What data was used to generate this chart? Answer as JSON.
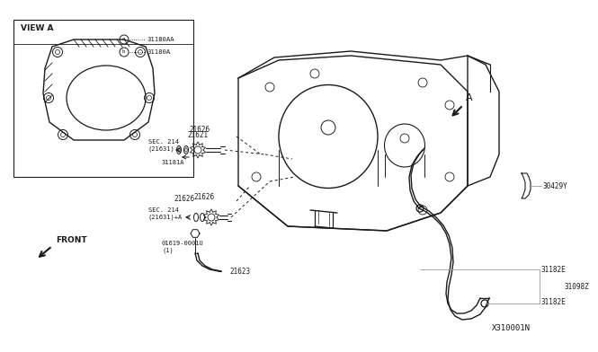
{
  "bg_color": "#ffffff",
  "line_color": "#1a1a1a",
  "gray_color": "#999999",
  "title": "X310001N",
  "fig_width": 6.4,
  "fig_height": 3.72,
  "labels": {
    "view_a": "VIEW A",
    "31180AA": "31180AA",
    "31180A": "31180A",
    "21626_top": "21626",
    "21621": "21621",
    "sec214_1": "SEC. 214\n(21631)",
    "31181A": "31181A",
    "21626_mid": "21626",
    "21626_low": "21626",
    "sec214_2": "SEC. 214\n(21631)+A",
    "01619": "01619-0001U\n(1)",
    "21623": "21623",
    "31182E_top": "31182E",
    "31098Z": "31098Z",
    "31182E_bot": "31182E",
    "30429Y": "30429Y",
    "arrow_a": "A",
    "front": "FRONT"
  }
}
